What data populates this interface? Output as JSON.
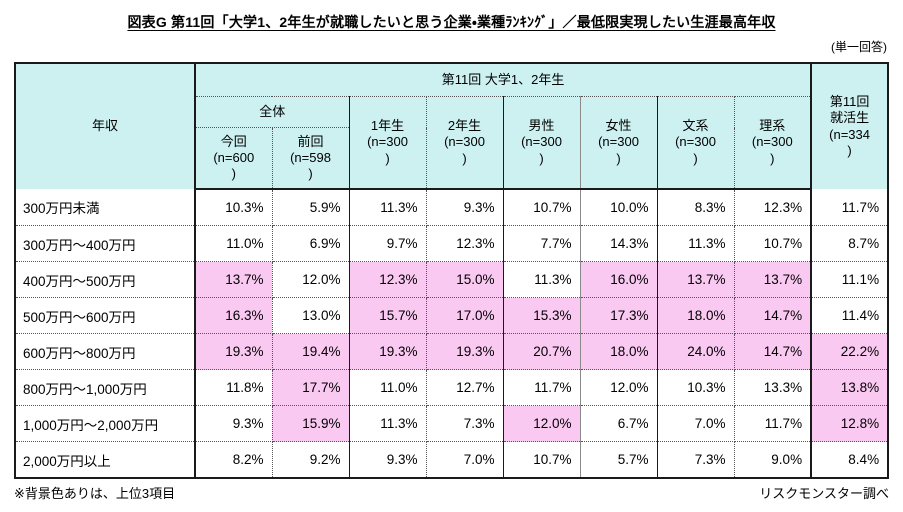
{
  "title": "図表G 第11回「大学1、2年生が就職したいと思う企業・業種ﾗﾝｷﾝｸﾞ」／最低限実現したい生涯最高年収",
  "response_type": "(単一回答)",
  "colors": {
    "header_bg": "#cdf0f0",
    "highlight_bg": "#f9c9f1",
    "line": "#1a1a1a",
    "dot": "#555555"
  },
  "table": {
    "corner_header": "年収",
    "group_header": "第11回  大学1、2年生",
    "overall_header": "全体",
    "jobseeker_header": "第11回\n就活生\n(n=334\n)",
    "columns": [
      "今回\n(n=600\n)",
      "前回\n(n=598\n)",
      "1年生\n(n=300\n)",
      "2年生\n(n=300\n)",
      "男性\n(n=300\n)",
      "女性\n(n=300\n)",
      "文系\n(n=300\n)",
      "理系\n(n=300\n)"
    ],
    "rows": [
      {
        "label": "300万円未満",
        "values": [
          "10.3%",
          "5.9%",
          "11.3%",
          "9.3%",
          "10.7%",
          "10.0%",
          "8.3%",
          "12.3%",
          "11.7%"
        ],
        "highlight": [
          0,
          0,
          0,
          0,
          0,
          0,
          0,
          0,
          0
        ]
      },
      {
        "label": "300万円～400万円",
        "values": [
          "11.0%",
          "6.9%",
          "9.7%",
          "12.3%",
          "7.7%",
          "14.3%",
          "11.3%",
          "10.7%",
          "8.7%"
        ],
        "highlight": [
          0,
          0,
          0,
          0,
          0,
          0,
          0,
          0,
          0
        ]
      },
      {
        "label": "400万円～500万円",
        "values": [
          "13.7%",
          "12.0%",
          "12.3%",
          "15.0%",
          "11.3%",
          "16.0%",
          "13.7%",
          "13.7%",
          "11.1%"
        ],
        "highlight": [
          1,
          0,
          1,
          1,
          0,
          1,
          1,
          1,
          0
        ]
      },
      {
        "label": "500万円～600万円",
        "values": [
          "16.3%",
          "13.0%",
          "15.7%",
          "17.0%",
          "15.3%",
          "17.3%",
          "18.0%",
          "14.7%",
          "11.4%"
        ],
        "highlight": [
          1,
          0,
          1,
          1,
          1,
          1,
          1,
          1,
          0
        ]
      },
      {
        "label": "600万円～800万円",
        "values": [
          "19.3%",
          "19.4%",
          "19.3%",
          "19.3%",
          "20.7%",
          "18.0%",
          "24.0%",
          "14.7%",
          "22.2%"
        ],
        "highlight": [
          1,
          1,
          1,
          1,
          1,
          1,
          1,
          1,
          1
        ]
      },
      {
        "label": "800万円～1,000万円",
        "values": [
          "11.8%",
          "17.7%",
          "11.0%",
          "12.7%",
          "11.7%",
          "12.0%",
          "10.3%",
          "13.3%",
          "13.8%"
        ],
        "highlight": [
          0,
          1,
          0,
          0,
          0,
          0,
          0,
          0,
          1
        ]
      },
      {
        "label": "1,000万円～2,000万円",
        "values": [
          "9.3%",
          "15.9%",
          "11.3%",
          "7.3%",
          "12.0%",
          "6.7%",
          "7.0%",
          "11.7%",
          "12.8%"
        ],
        "highlight": [
          0,
          1,
          0,
          0,
          1,
          0,
          0,
          0,
          1
        ]
      },
      {
        "label": "2,000万円以上",
        "values": [
          "8.2%",
          "9.2%",
          "9.3%",
          "7.0%",
          "10.7%",
          "5.7%",
          "7.3%",
          "9.0%",
          "8.4%"
        ],
        "highlight": [
          0,
          0,
          0,
          0,
          0,
          0,
          0,
          0,
          0
        ]
      }
    ]
  },
  "footnote_left": "※背景色ありは、上位3項目",
  "footnote_right": "リスクモンスター調べ"
}
